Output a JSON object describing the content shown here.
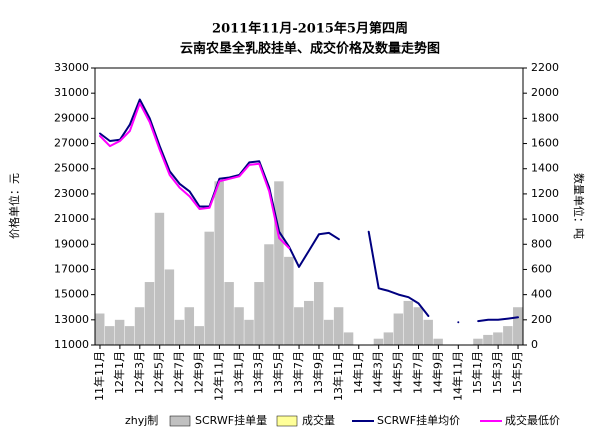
{
  "chart_data": {
    "type": "combo",
    "title": "2011年11月-2015年5月第四周",
    "subtitle": "云南农垦全乳胶挂单、成交价格及数量走势图",
    "y_label": "价格单位：元",
    "y2_label": "数量单位：吨",
    "credit": "zhyj制",
    "categories": [
      "11年11月",
      null,
      "12年1月",
      null,
      "12年3月",
      null,
      "12年5月",
      null,
      "12年7月",
      null,
      "12年9月",
      null,
      "12年11月",
      null,
      "13年1月",
      null,
      "13年3月",
      null,
      "13年5月",
      null,
      "13年7月",
      null,
      "13年9月",
      null,
      "13年11月",
      null,
      "14年1月",
      null,
      "14年3月",
      null,
      "14年5月",
      null,
      "14年7月",
      null,
      "14年9月",
      null,
      "14年11月",
      null,
      "15年1月",
      null,
      "15年3月",
      null,
      "15年5月"
    ],
    "ylim": [
      11000,
      33000
    ],
    "yticks": [
      11000,
      13000,
      15000,
      17000,
      19000,
      21000,
      23000,
      25000,
      27000,
      29000,
      31000,
      33000
    ],
    "y2lim": [
      0,
      2200
    ],
    "y2ticks": [
      0,
      200,
      400,
      600,
      800,
      1000,
      1200,
      1400,
      1600,
      1800,
      2000,
      2200
    ],
    "series": [
      {
        "name": "SCRWF挂单量",
        "type": "bar",
        "axis": "y2",
        "color": "#c0c0c0",
        "values": [
          250,
          150,
          200,
          150,
          300,
          500,
          1050,
          600,
          200,
          300,
          150,
          900,
          1300,
          500,
          300,
          200,
          500,
          800,
          1300,
          700,
          300,
          350,
          500,
          200,
          300,
          100,
          0,
          0,
          50,
          100,
          250,
          350,
          300,
          200,
          50,
          0,
          0,
          0,
          50,
          80,
          100,
          150,
          300
        ]
      },
      {
        "name": "成交量",
        "type": "bar",
        "axis": "y2",
        "color": "#ffff99",
        "values": [
          0,
          0,
          0,
          0,
          0,
          0,
          0,
          0,
          0,
          0,
          0,
          0,
          0,
          0,
          0,
          0,
          0,
          0,
          0,
          0,
          0,
          0,
          0,
          0,
          0,
          0,
          0,
          0,
          0,
          0,
          0,
          0,
          0,
          0,
          0,
          0,
          0,
          0,
          0,
          0,
          0,
          0,
          0
        ]
      },
      {
        "name": "SCRWF挂单均价",
        "type": "line",
        "axis": "y",
        "color": "#000080",
        "values": [
          27800,
          27200,
          27300,
          28500,
          30500,
          29000,
          26800,
          24800,
          23800,
          23200,
          22000,
          22000,
          24200,
          24300,
          24500,
          25500,
          25600,
          23500,
          20000,
          18800,
          17200,
          18500,
          19800,
          19900,
          19400,
          null,
          null,
          20000,
          15500,
          15300,
          15000,
          14800,
          14300,
          13300,
          null,
          null,
          12800,
          null,
          12900,
          13000,
          13000,
          13100,
          13200
        ]
      },
      {
        "name": "成交最低价",
        "type": "line",
        "axis": "y",
        "color": "#ff00ff",
        "values": [
          27600,
          26800,
          27200,
          28000,
          30200,
          28700,
          26500,
          24500,
          23500,
          22800,
          21800,
          21900,
          24000,
          24200,
          24400,
          25300,
          25400,
          23200,
          19500,
          18700,
          null,
          null,
          null,
          null,
          null,
          null,
          null,
          null,
          null,
          null,
          null,
          null,
          null,
          null,
          null,
          null,
          null,
          null,
          null,
          null,
          null,
          null,
          null
        ]
      }
    ]
  }
}
